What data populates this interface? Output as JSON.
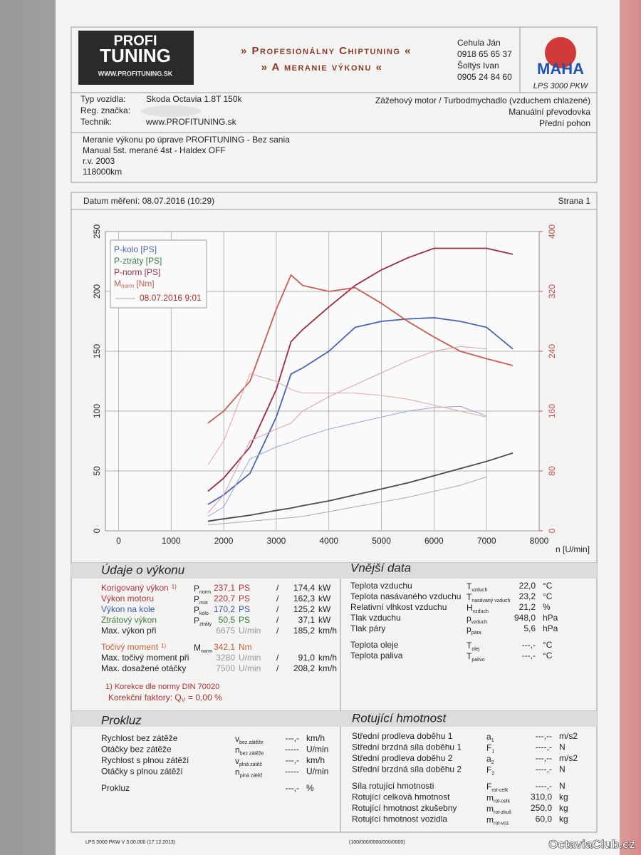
{
  "header": {
    "logo_top": "PROFI",
    "logo_main": "TUNING",
    "logo_url": "WWW.PROFITUNING.SK",
    "title_lines": [
      "» Profesionálny Chiptuning «",
      "» A meranie výkonu «"
    ],
    "contacts": [
      "Cehula Ján",
      "0918 65 65 37",
      "Šoltýs Ivan",
      "0905 24 84 60"
    ],
    "brand": "MAHA",
    "device": "LPS 3000 PKW"
  },
  "vehicle": {
    "rows": [
      {
        "label": "Typ vozidla:",
        "value": "Skoda Octavia 1.8T 150k"
      },
      {
        "label": "Reg. značka:"
      },
      {
        "label": "Technik:",
        "value": "www.PROFITUNING.sk"
      }
    ],
    "right": [
      "Zážehový motor / Turbodmychadlo (vzduchem chlazené)",
      "Manuální převodovka",
      "Přední pohon"
    ]
  },
  "notes": [
    "Meranie výkonu po úprave PROFITUNING - Bez sania",
    "Manual 5st. merané 4st - Haldex OFF",
    "r.v. 2003",
    "118000km"
  ],
  "measurement": {
    "date": "Datum měření: 08.07.2016 (10:29)",
    "page": "Strana 1"
  },
  "chart": {
    "type": "line",
    "x_label": "n [U/min]",
    "xlim": [
      -250,
      8000
    ],
    "xticks": [
      0,
      1000,
      2000,
      3000,
      4000,
      5000,
      6000,
      7000,
      8000
    ],
    "ylim": [
      0,
      250
    ],
    "yticks": [
      0,
      50,
      100,
      150,
      200,
      250
    ],
    "y2lim": [
      0,
      400
    ],
    "y2ticks": [
      0,
      80,
      160,
      240,
      320,
      400
    ],
    "grid": true,
    "legend": "upper left",
    "comparison_label": "08.07.2016 9:01",
    "x": [
      1700,
      2000,
      2500,
      3000,
      3280,
      3500,
      4000,
      4500,
      5000,
      5500,
      6000,
      6500,
      7000,
      7500
    ],
    "series": [
      {
        "name": "P-kolo [PS]",
        "color": "#4a64b4",
        "values": [
          22,
          30,
          48,
          95,
          131,
          136,
          150,
          170,
          175,
          177,
          178,
          175,
          170,
          152
        ]
      },
      {
        "name": "P-ztráty [PS]",
        "color": "#3d7a45",
        "line_color": "#4a4a4a",
        "values": [
          8,
          10,
          13,
          17,
          19,
          21,
          25,
          30,
          35,
          40,
          46,
          52,
          58,
          65
        ]
      },
      {
        "name": "P-norm [PS]",
        "color": "#9e2a3e",
        "values": [
          33,
          44,
          70,
          118,
          158,
          168,
          187,
          205,
          218,
          228,
          236,
          236,
          236,
          231
        ]
      },
      {
        "name": "M",
        "name_sub": "norm",
        "name_unit": "[Nm]",
        "color": "#cc5c50",
        "axis": "y2",
        "values": [
          144,
          160,
          200,
          296,
          342,
          328,
          320,
          325,
          304,
          280,
          259,
          240,
          230,
          221
        ]
      },
      {
        "color": "#9aa6cc",
        "values": [
          12,
          20,
          60,
          70,
          74,
          78,
          85,
          90,
          95,
          100,
          103,
          104,
          96,
          null
        ]
      },
      {
        "color": "#a8a8a8",
        "values": [
          5,
          6,
          8,
          10,
          11,
          12,
          16,
          20,
          24,
          28,
          33,
          38,
          45,
          null
        ]
      },
      {
        "color": "#d8a0a8",
        "values": [
          15,
          30,
          75,
          85,
          90,
          100,
          112,
          122,
          132,
          142,
          150,
          154,
          152,
          null
        ]
      },
      {
        "color": "#e0a8a0",
        "axis": "y2",
        "values": [
          88,
          120,
          210,
          200,
          189,
          184,
          184,
          184,
          181,
          176,
          168,
          160,
          152,
          null
        ]
      }
    ]
  },
  "performance": {
    "title": "Údaje o výkonu",
    "rows": [
      {
        "label": "Korigovaný výkon",
        "note": "1)",
        "color": "#b0303a",
        "sym": "P",
        "sub": "norm",
        "v1": "237,1",
        "u1": "PS",
        "sep": "/",
        "v2": "174,4",
        "u2": "kW"
      },
      {
        "label": "Výkon motoru",
        "color": "#b0303a",
        "sym": "P",
        "sub": "mot",
        "v1": "220,7",
        "u1": "PS",
        "sep": "/",
        "v2": "162,3",
        "u2": "kW"
      },
      {
        "label": "Výkon na kole",
        "color": "#3a5aa8",
        "sym": "P",
        "sub": "kolo",
        "v1": "170,2",
        "u1": "PS",
        "sep": "/",
        "v2": "125,2",
        "u2": "kW"
      },
      {
        "label": "Ztrátový výkon",
        "color": "#3d7a45",
        "sym": "P",
        "sub": "ztráty",
        "v1": "50,5",
        "u1": "PS",
        "sep": "/",
        "v2": "37,1",
        "u2": "kW"
      },
      {
        "label": "Max. výkon při",
        "color": "#222",
        "v1": "6675",
        "u1": "U/min",
        "sep": "/",
        "v2": "185,2",
        "u2": "km/h"
      },
      {
        "label": "Točivý moment",
        "note": "1)",
        "color": "#c86040",
        "sym": "M",
        "sub": "norm",
        "v1": "342,1",
        "u1": "Nm"
      },
      {
        "label": "Max. točivý moment při",
        "color": "#222",
        "v1": "3280",
        "u1": "U/min",
        "sep": "/",
        "v2": "91,0",
        "u2": "km/h"
      },
      {
        "label": "Max. dosažené otáčky",
        "color": "#222",
        "v1": "7500",
        "u1": "U/min",
        "sep": "/",
        "v2": "208,2",
        "u2": "km/h"
      }
    ],
    "footnote": "1) Korekce dle normy DIN 70020",
    "factor_label": "Korekční faktory: Q",
    "factor_sub": "V",
    "factor_value": "=   0,00 %"
  },
  "external": {
    "title": "Vnější data",
    "rows": [
      {
        "label": "Teplota vzduchu",
        "sym": "T",
        "sub": "vzduch",
        "value": "22,0",
        "unit": "°C"
      },
      {
        "label": "Teplota nasávaného vzduchu",
        "sym": "T",
        "sub": "nasávaný vzduch",
        "value": "23,2",
        "unit": "°C"
      },
      {
        "label": "Relativní vlhkost vzduchu",
        "sym": "H",
        "sub": "vzduch",
        "value": "21,2",
        "unit": "%"
      },
      {
        "label": "Tlak vzduchu",
        "sym": "p",
        "sub": "vzduch",
        "value": "948,0",
        "unit": "hPa"
      },
      {
        "label": "Tlak páry",
        "sym": "p",
        "sub": "pára",
        "value": "5,6",
        "unit": "hPa"
      },
      {
        "label": "Teplota oleje",
        "sym": "T",
        "sub": "olej",
        "value": "---,-",
        "unit": "°C"
      },
      {
        "label": "Teplota paliva",
        "sym": "T",
        "sub": "palivo",
        "value": "---,-",
        "unit": "°C"
      }
    ]
  },
  "slip": {
    "title": "Prokluz",
    "rows": [
      {
        "label": "Rychlost bez zátěže",
        "sym": "v",
        "sub": "bez zátěže",
        "value": "---,-",
        "unit": "km/h"
      },
      {
        "label": "Otáčky bez zátěže",
        "sym": "n",
        "sub": "bez zátěže",
        "value": "-----",
        "unit": "U/min"
      },
      {
        "label": "Rychlost s plnou zátěží",
        "sym": "v",
        "sub": "plná zátěž",
        "value": "---,-",
        "unit": "km/h"
      },
      {
        "label": "Otáčky s plnou zátěží",
        "sym": "n",
        "sub": "plná zátěž",
        "value": "-----",
        "unit": "U/min"
      },
      {
        "label": "Prokluz",
        "value": "---,-",
        "unit": "%"
      }
    ]
  },
  "rotating": {
    "title": "Rotující hmotnost",
    "rows": [
      {
        "label": "Střední prodleva doběhu 1",
        "sym": "a",
        "sub": "1",
        "value": "---,--",
        "unit": "m/s2"
      },
      {
        "label": "Střední brzdná síla doběhu 1",
        "sym": "F",
        "sub": "1",
        "value": "----,-",
        "unit": "N"
      },
      {
        "label": "Střední prodleva doběhu 2",
        "sym": "a",
        "sub": "2",
        "value": "---,--",
        "unit": "m/s2"
      },
      {
        "label": "Střední brzdná síla doběhu 2",
        "sym": "F",
        "sub": "2",
        "value": "----,-",
        "unit": "N"
      },
      {
        "label": "Síla rotující hmotnosti",
        "sym": "F",
        "sub": "rot-celk",
        "value": "----,-",
        "unit": "N"
      },
      {
        "label": "Rotující celková hmotnost",
        "sym": "m",
        "sub": "rot-celk",
        "value": "310,0",
        "unit": "kg"
      },
      {
        "label": "Rotující hmotnost zkušebny",
        "sym": "m",
        "sub": "rot-zkuš",
        "value": "250,0",
        "unit": "kg"
      },
      {
        "label": "Rotující hmotnost vozidla",
        "sym": "m",
        "sub": "rot-voz",
        "value": "60,0",
        "unit": "kg"
      }
    ]
  },
  "footer": {
    "version": "LPS 3000 PKW V 3.00.000 (17.12.2013)",
    "code": "(100/000/0000/000/0000)",
    "watermark": "OctaviaClub.cz"
  }
}
